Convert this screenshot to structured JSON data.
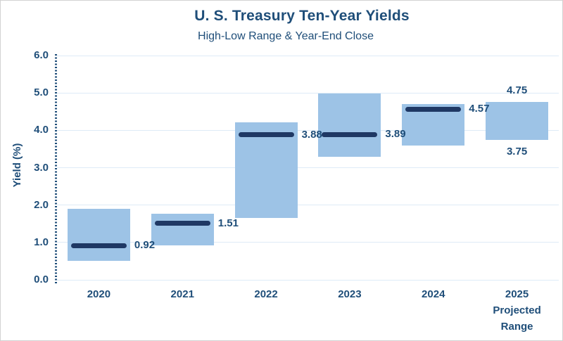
{
  "chart": {
    "title": "U. S. Treasury Ten-Year Yields",
    "subtitle": "High-Low Range & Year-End Close",
    "ylabel": "Yield (%)"
  },
  "chart_data": {
    "type": "bar",
    "variant": "floating high-low range bars with year-end close marker line",
    "title": "U. S. Treasury Ten-Year Yields",
    "subtitle": "High-Low Range & Year-End Close",
    "xlabel": "",
    "ylabel": "Yield (%)",
    "ylim": [
      0.0,
      6.0
    ],
    "ytick_labels": [
      "6.0",
      "5.0",
      "4.0",
      "3.0",
      "2.0",
      "1.0",
      "0.0"
    ],
    "grid": true,
    "legend": "none",
    "categories": [
      "2020",
      "2021",
      "2022",
      "2023",
      "2024",
      "2025"
    ],
    "bars": [
      {
        "category": "2020",
        "x_label": "2020",
        "high": 1.9,
        "low": 0.51,
        "close": 0.92,
        "close_label": "0.92"
      },
      {
        "category": "2021",
        "x_label": "2021",
        "high": 1.77,
        "low": 0.93,
        "close": 1.51,
        "close_label": "1.51"
      },
      {
        "category": "2022",
        "x_label": "2022",
        "high": 4.22,
        "low": 1.65,
        "close": 3.88,
        "close_label": "3.88"
      },
      {
        "category": "2023",
        "x_label": "2023",
        "high": 4.99,
        "low": 3.3,
        "close": 3.89,
        "close_label": "3.89"
      },
      {
        "category": "2024",
        "x_label": "2024",
        "high": 4.7,
        "low": 3.6,
        "close": 4.57,
        "close_label": "4.57"
      },
      {
        "category": "2025",
        "x_label": "2025\nProjected\nRange",
        "high": 4.75,
        "low": 3.75,
        "close": null,
        "high_label": "4.75",
        "low_label": "3.75"
      }
    ],
    "colors": {
      "range_bar": "#9DC3E6",
      "close_line": "#1F3864",
      "text": "#1F4E79",
      "gridline": "#DEEBF7",
      "axis_dotted": "#1F4E79"
    }
  }
}
